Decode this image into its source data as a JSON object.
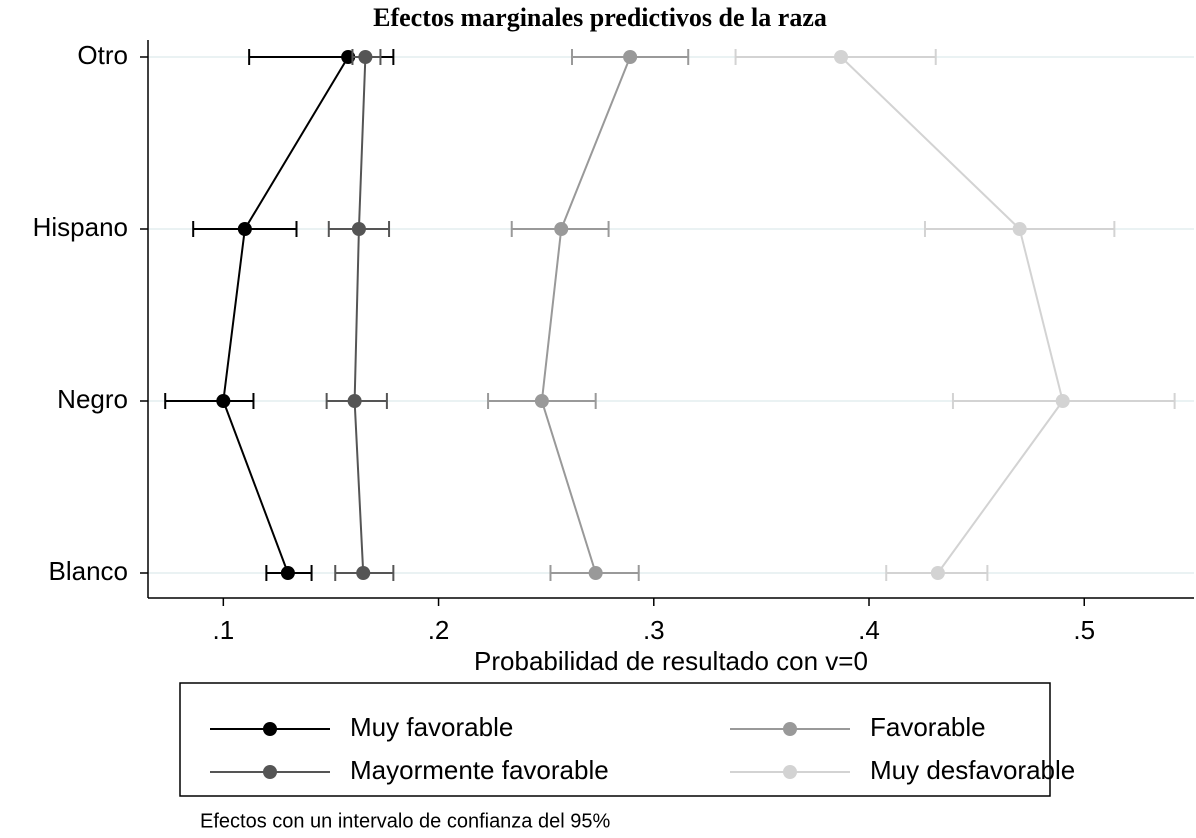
{
  "chart_data": {
    "type": "dot-ci",
    "title": "Efectos marginales predictivos de la raza",
    "x_label": "Probabilidad de resultado con v=0",
    "note": "Efectos con un intervalo de confianza del 95%",
    "categories": [
      "Blanco",
      "Negro",
      "Hispano",
      "Otro"
    ],
    "xlim": [
      0.065,
      0.551
    ],
    "xticks": [
      {
        "value": 0.1,
        "label": ".1"
      },
      {
        "value": 0.2,
        "label": ".2"
      },
      {
        "value": 0.3,
        "label": ".3"
      },
      {
        "value": 0.4,
        "label": ".4"
      },
      {
        "value": 0.5,
        "label": ".5"
      }
    ],
    "grid": true,
    "series": [
      {
        "name": "Muy favorable",
        "color": "#000000",
        "values": [
          0.13,
          0.1,
          0.11,
          0.158
        ],
        "lower": [
          0.12,
          0.073,
          0.086,
          0.112
        ],
        "upper": [
          0.141,
          0.114,
          0.134,
          0.179
        ]
      },
      {
        "name": "Mayormente favorable",
        "color": "#555555",
        "values": [
          0.165,
          0.161,
          0.163,
          0.166
        ],
        "lower": [
          0.152,
          0.148,
          0.149,
          0.16
        ],
        "upper": [
          0.179,
          0.176,
          0.177,
          0.173
        ]
      },
      {
        "name": "Favorable",
        "color": "#999999",
        "values": [
          0.273,
          0.248,
          0.257,
          0.289
        ],
        "lower": [
          0.252,
          0.223,
          0.234,
          0.262
        ],
        "upper": [
          0.293,
          0.273,
          0.279,
          0.316
        ]
      },
      {
        "name": "Muy desfavorable",
        "color": "#d3d3d3",
        "values": [
          0.432,
          0.49,
          0.47,
          0.387
        ],
        "lower": [
          0.408,
          0.439,
          0.426,
          0.338
        ],
        "upper": [
          0.455,
          0.542,
          0.514,
          0.431
        ]
      }
    ]
  }
}
